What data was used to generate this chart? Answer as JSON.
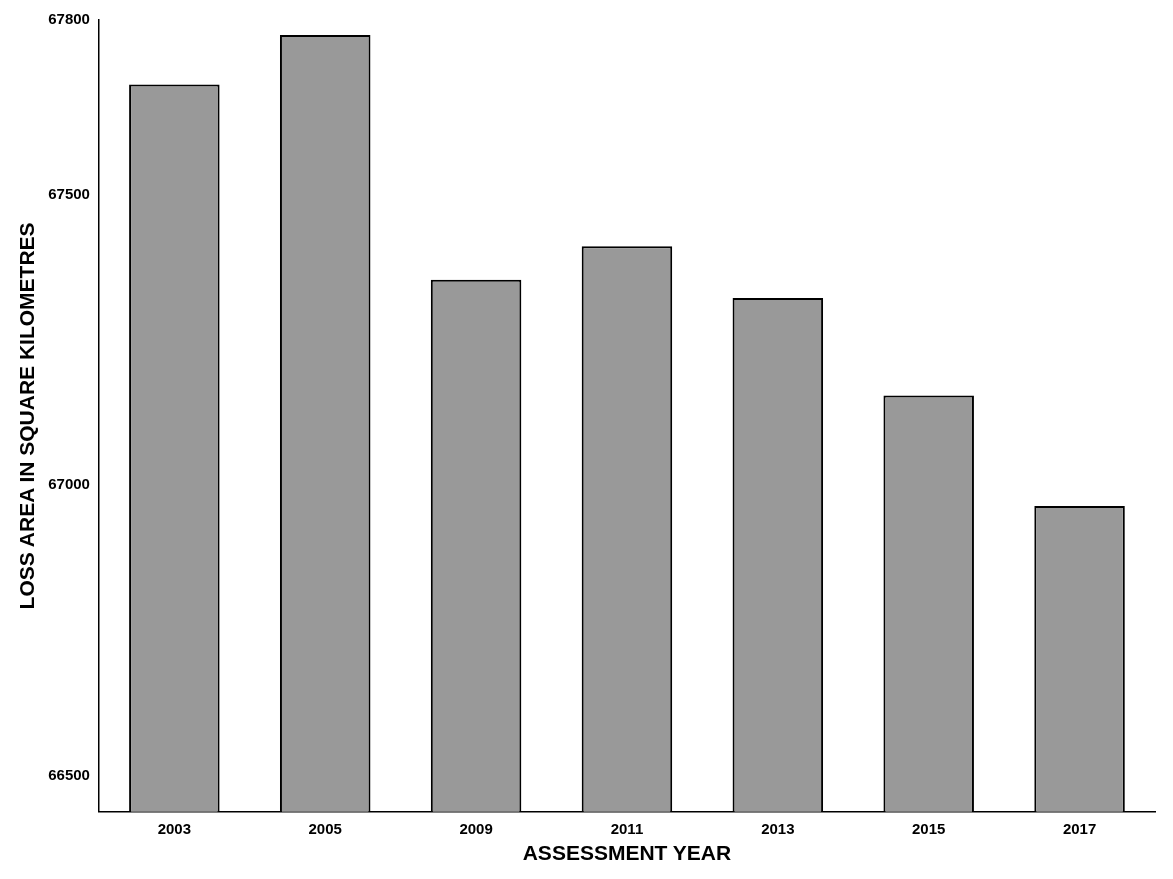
{
  "chart_data": {
    "type": "bar",
    "xlabel": "ASSESSMENT YEAR",
    "ylabel": "LOSS AREA IN SQUARE KILOMETRES",
    "categories": [
      "2003",
      "2005",
      "2009",
      "2011",
      "2013",
      "2015",
      "2017"
    ],
    "values": [
      67689,
      67774,
      67353,
      67411,
      67322,
      67154,
      66964
    ],
    "color": "#999999",
    "ylim": [
      66438,
      67800
    ],
    "yticks": [
      66500,
      67000,
      67500,
      67800
    ],
    "grid": false,
    "legend": false
  }
}
